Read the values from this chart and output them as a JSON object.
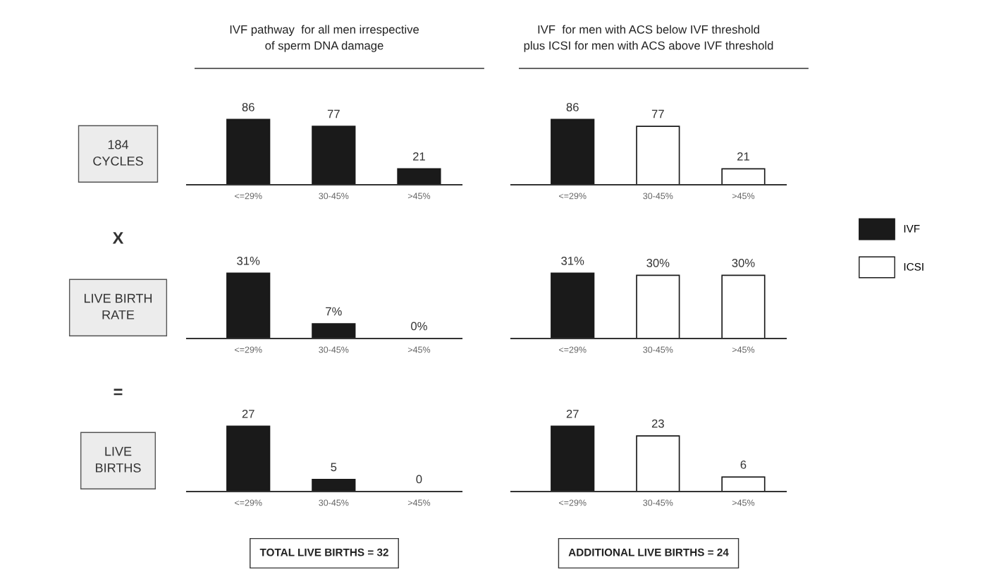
{
  "chart_data": [
    {
      "type": "bar",
      "title": "IVF pathway  for all men irrespective\nof sperm DNA damage",
      "ylabel": "184\nCYCLES",
      "annotations": [
        "X"
      ],
      "categories": [
        "<=29%",
        "30-45%",
        ">45%"
      ],
      "stacked": true,
      "data_labels": true,
      "series": [
        {
          "color": "#1a1a1a",
          "values": [
            86,
            77,
            21
          ]
        }
      ]
    },
    {
      "type": "bar",
      "title": "IVF  for men with ACS below IVF threshold\nplus ICSI for men with ACS above IVF threshold",
      "categories": [
        "<=29%",
        "30-45%",
        ">45%"
      ],
      "stacked": true,
      "data_labels": true,
      "legend": "right",
      "series": [
        {
          "name": "IVF",
          "color": "#1a1a1a",
          "values": [
            86,
            null,
            null
          ]
        },
        {
          "name": "ICSI",
          "color": "#ffffff",
          "values": [
            null,
            77,
            21
          ]
        }
      ]
    },
    {
      "type": "bar",
      "ylabel": "LIVE BIRTH\nRATE",
      "annotations": [
        "="
      ],
      "categories": [
        "<=29%",
        "30-45%",
        ">45%"
      ],
      "stacked": true,
      "series": [
        {
          "color": "#1a1a1a",
          "values": [
            31,
            7,
            0
          ],
          "value_labels": [
            "31%",
            "7%",
            "0%"
          ]
        }
      ]
    },
    {
      "type": "bar",
      "categories": [
        "<=29%",
        "30-45%",
        ">45%"
      ],
      "stacked": true,
      "series": [
        {
          "color": "#1a1a1a",
          "values": [
            31,
            null,
            null
          ],
          "value_labels": [
            "31%",
            null,
            null
          ]
        },
        {
          "color": "#ffffff",
          "values": [
            null,
            30,
            30
          ],
          "value_labels": [
            null,
            "30%",
            "30%"
          ]
        }
      ]
    },
    {
      "type": "bar",
      "ylabel": "LIVE\nBIRTHS",
      "annotations": [
        "TOTAL LIVE BIRTHS = 32"
      ],
      "categories": [
        "<=29%",
        "30-45%",
        ">45%"
      ],
      "stacked": true,
      "data_labels": true,
      "series": [
        {
          "color": "#1a1a1a",
          "values": [
            27,
            5,
            0
          ]
        }
      ]
    },
    {
      "type": "bar",
      "annotations": [
        "ADDITIONAL LIVE BIRTHS = 24"
      ],
      "categories": [
        "<=29%",
        "30-45%",
        ">45%"
      ],
      "stacked": true,
      "data_labels": true,
      "series": [
        {
          "color": "#1a1a1a",
          "values": [
            27,
            null,
            null
          ]
        },
        {
          "color": "#ffffff",
          "values": [
            null,
            23,
            6
          ]
        }
      ]
    }
  ]
}
